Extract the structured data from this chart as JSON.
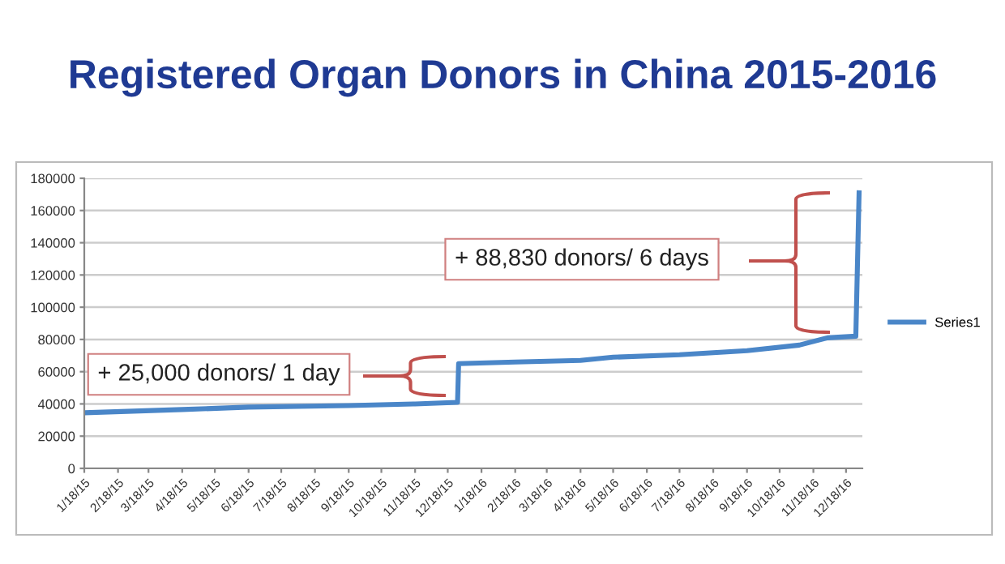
{
  "chart_data": {
    "type": "line",
    "title": "Registered Organ Donors in China 2015-2016",
    "x": [
      "2015-01-18",
      "2015-04-18",
      "2015-06-18",
      "2015-09-18",
      "2015-11-18",
      "2015-12-27",
      "2015-12-28",
      "2016-02-18",
      "2016-04-18",
      "2016-05-18",
      "2016-07-18",
      "2016-09-18",
      "2016-11-05",
      "2016-12-01",
      "2016-12-27",
      "2016-12-30"
    ],
    "series": [
      {
        "name": "Series1",
        "color": "#4a86c8",
        "values": [
          34500,
          36500,
          38000,
          39000,
          40000,
          41000,
          65000,
          66000,
          67000,
          69000,
          70500,
          73000,
          76500,
          81000,
          82000,
          171000
        ]
      }
    ],
    "xlim": [
      "2015-01-18",
      "2017-01-02"
    ],
    "xticks": [
      {
        "value": "2015-01-18",
        "label": "1/18/15"
      },
      {
        "value": "2015-02-18",
        "label": "2/18/15"
      },
      {
        "value": "2015-03-18",
        "label": "3/18/15"
      },
      {
        "value": "2015-04-18",
        "label": "4/18/15"
      },
      {
        "value": "2015-05-18",
        "label": "5/18/15"
      },
      {
        "value": "2015-06-18",
        "label": "6/18/15"
      },
      {
        "value": "2015-07-18",
        "label": "7/18/15"
      },
      {
        "value": "2015-08-18",
        "label": "8/18/15"
      },
      {
        "value": "2015-09-18",
        "label": "9/18/15"
      },
      {
        "value": "2015-10-18",
        "label": "10/18/15"
      },
      {
        "value": "2015-11-18",
        "label": "11/18/15"
      },
      {
        "value": "2015-12-18",
        "label": "12/18/15"
      },
      {
        "value": "2016-01-18",
        "label": "1/18/16"
      },
      {
        "value": "2016-02-18",
        "label": "2/18/16"
      },
      {
        "value": "2016-03-18",
        "label": "3/18/16"
      },
      {
        "value": "2016-04-18",
        "label": "4/18/16"
      },
      {
        "value": "2016-05-18",
        "label": "5/18/16"
      },
      {
        "value": "2016-06-18",
        "label": "6/18/16"
      },
      {
        "value": "2016-07-18",
        "label": "7/18/16"
      },
      {
        "value": "2016-08-18",
        "label": "8/18/16"
      },
      {
        "value": "2016-09-18",
        "label": "9/18/16"
      },
      {
        "value": "2016-10-18",
        "label": "10/18/16"
      },
      {
        "value": "2016-11-18",
        "label": "11/18/16"
      },
      {
        "value": "2016-12-18",
        "label": "12/18/16"
      }
    ],
    "ylim": [
      0,
      180000
    ],
    "yticks": [
      0,
      20000,
      40000,
      60000,
      80000,
      100000,
      120000,
      140000,
      160000,
      180000
    ],
    "grid": "y",
    "legend": "right",
    "marker": "none",
    "line_style": "solid",
    "annotations": [
      "+ 25,000 donors/ 1 day",
      "+ 88,830 donors/ 6 days"
    ]
  }
}
